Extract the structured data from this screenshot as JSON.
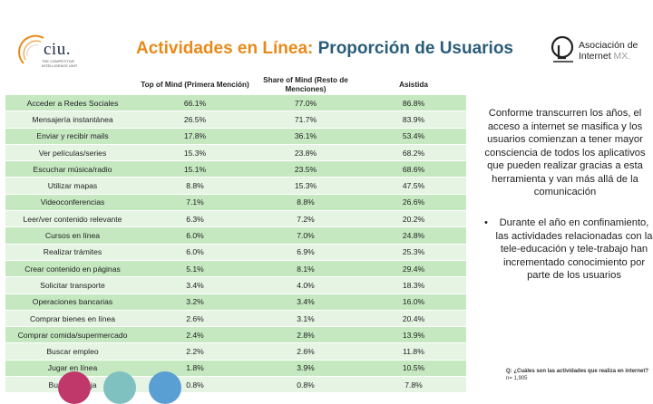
{
  "logos": {
    "ciu": {
      "brand": "ciu.",
      "subtitle": "THE COMPETITIVE INTELLIGENCE UNIT"
    },
    "amx": {
      "line1": "Asociación de",
      "line2": "Internet",
      "line3": "MX."
    }
  },
  "title": {
    "part1": "Actividades en Línea:",
    "part2": "Proporción de Usuarios"
  },
  "table": {
    "headers": [
      "",
      "Top of Mind (Primera Mención)",
      "Share of Mind (Resto de Menciones)",
      "Asistida"
    ],
    "rows": [
      [
        "Acceder a Redes Sociales",
        "66.1%",
        "77.0%",
        "86.8%"
      ],
      [
        "Mensajería instantánea",
        "26.5%",
        "71.7%",
        "83.9%"
      ],
      [
        "Enviar y recibir mails",
        "17.8%",
        "36.1%",
        "53.4%"
      ],
      [
        "Ver películas/series",
        "15.3%",
        "23.8%",
        "68.2%"
      ],
      [
        "Escuchar música/radio",
        "15.1%",
        "23.5%",
        "68.6%"
      ],
      [
        "Utilizar mapas",
        "8.8%",
        "15.3%",
        "47.5%"
      ],
      [
        "Videoconferencias",
        "7.1%",
        "8.8%",
        "26.6%"
      ],
      [
        "Leer/ver contenido relevante",
        "6.3%",
        "7.2%",
        "20.2%"
      ],
      [
        "Cursos en línea",
        "6.0%",
        "7.0%",
        "24.8%"
      ],
      [
        "Realizar trámites",
        "6.0%",
        "6.9%",
        "25.3%"
      ],
      [
        "Crear contenido en páginas",
        "5.1%",
        "8.1%",
        "29.4%"
      ],
      [
        "Solicitar transporte",
        "3.4%",
        "4.0%",
        "18.3%"
      ],
      [
        "Operaciones bancarias",
        "3.2%",
        "3.4%",
        "16.0%"
      ],
      [
        "Comprar bienes en línea",
        "2.6%",
        "3.1%",
        "20.4%"
      ],
      [
        "Comprar comida/supermercado",
        "2.4%",
        "2.8%",
        "13.9%"
      ],
      [
        "Buscar empleo",
        "2.2%",
        "2.6%",
        "11.8%"
      ],
      [
        "Jugar en línea",
        "1.8%",
        "3.9%",
        "10.5%"
      ],
      [
        "Buscar pareja",
        "0.8%",
        "0.8%",
        "7.8%"
      ]
    ]
  },
  "commentary": {
    "paragraph": "Conforme transcurren los años, el acceso a internet se masifica y los usuarios comienzan a tener mayor consciencia de todos los aplicativos que pueden realizar gracias a esta herramienta y van más allá de la comunicación",
    "bullet_symbol": "•",
    "bullet": "Durante el año en confinamiento, las actividades relacionadas con la tele-educación y tele-trabajo han incrementado conocimiento por parte de los usuarios"
  },
  "footnote": {
    "question": "Q: ¿Cuáles son las actividades que realiza en internet?",
    "sample": "n= 1,905"
  },
  "colors": {
    "title_orange": "#e88a1a",
    "title_blue": "#2a5d7a",
    "row_dark": "#c5e8c1",
    "row_light": "#e6f4e4",
    "circle1": "#c0386a",
    "circle2": "#7fc1c1",
    "circle3": "#5a9fd3"
  }
}
